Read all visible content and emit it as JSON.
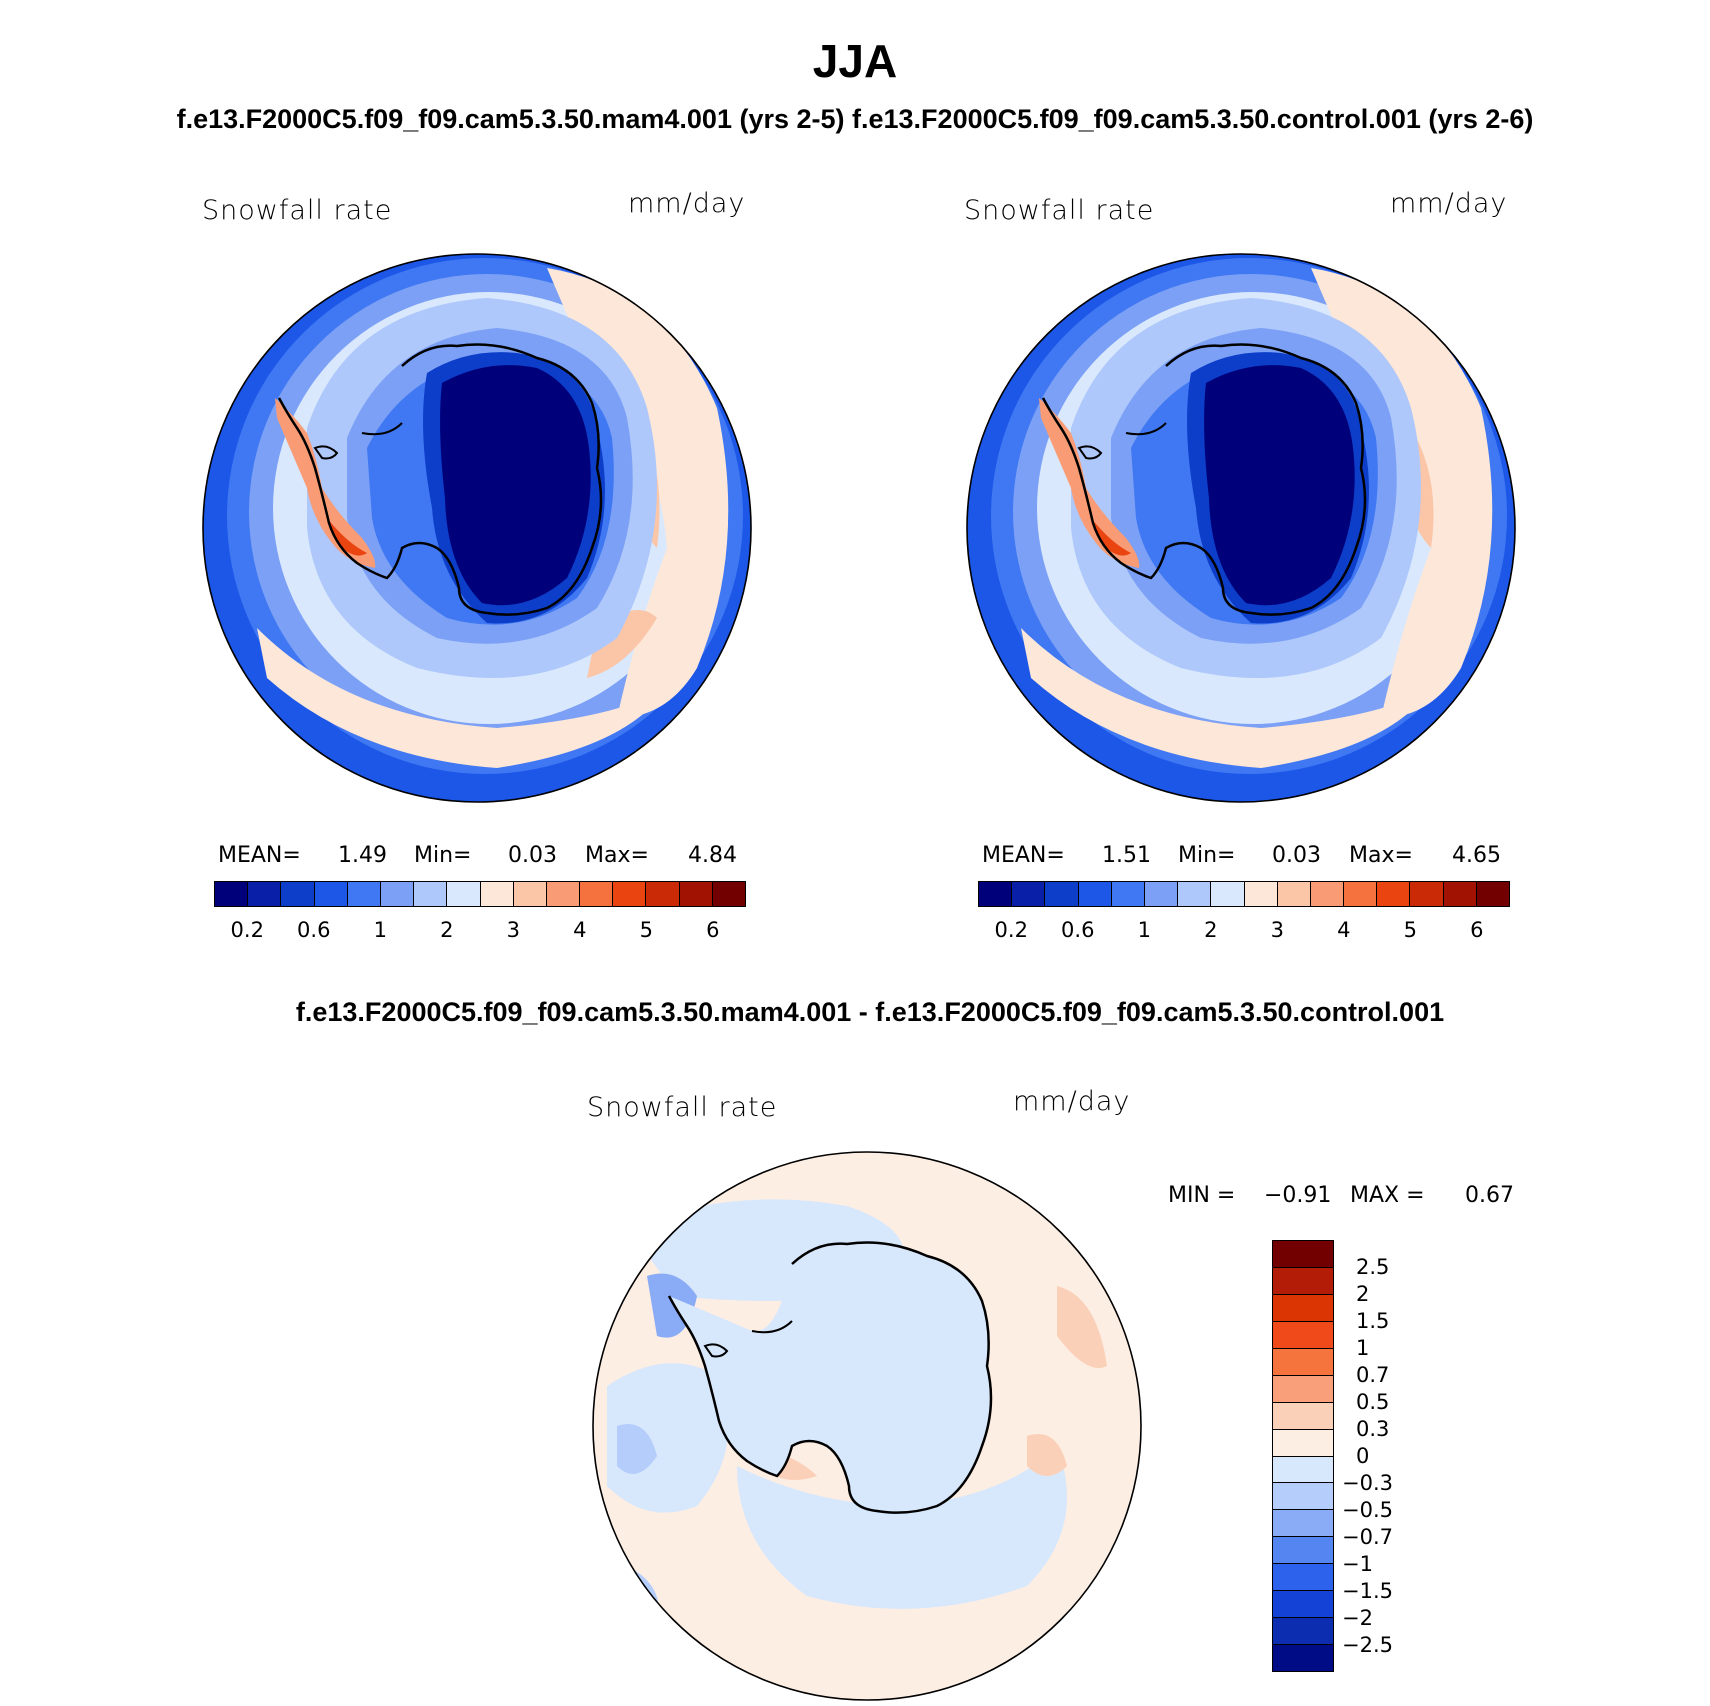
{
  "title": "JJA",
  "subtitle_top": "f.e13.F2000C5.f09_f09.cam5.3.50.mam4.001 (yrs 2-5) f.e13.F2000C5.f09_f09.cam5.3.50.control.001 (yrs 2-6)",
  "subtitle_diff": "f.e13.F2000C5.f09_f09.cam5.3.50.mam4.001 - f.e13.F2000C5.f09_f09.cam5.3.50.control.001",
  "panels": [
    {
      "variable": "Snowfall rate",
      "units": "mm/day",
      "stats": {
        "mean_label": "MEAN=",
        "mean": "1.49",
        "min_label": "Min=",
        "min": "0.03",
        "max_label": "Max=",
        "max": "4.84"
      }
    },
    {
      "variable": "Snowfall rate",
      "units": "mm/day",
      "stats": {
        "mean_label": "MEAN=",
        "mean": "1.51",
        "min_label": "Min=",
        "min": "0.03",
        "max_label": "Max=",
        "max": "4.65"
      }
    }
  ],
  "diff_panel": {
    "variable": "Snowfall rate",
    "units": "mm/day",
    "min_label": "MIN =",
    "min": "−0.91",
    "max_label": "MAX =",
    "max": "0.67"
  },
  "colorbar_top": {
    "colors": [
      "#00007a",
      "#0a1fa8",
      "#0d3ec9",
      "#1c57e8",
      "#3f78f2",
      "#7ba0f5",
      "#aec8fb",
      "#d9e8fc",
      "#fde7d8",
      "#fbc6a8",
      "#f99c75",
      "#f5723f",
      "#ea4411",
      "#cb2a06",
      "#a21203",
      "#730000"
    ],
    "labels": [
      "0.2",
      "0.6",
      "1",
      "2",
      "3",
      "4",
      "5",
      "6"
    ]
  },
  "colorbar_diff": {
    "colors": [
      "#730000",
      "#b31c06",
      "#dc3504",
      "#f04a1a",
      "#f5743e",
      "#f9a07a",
      "#fbd0b8",
      "#fdeee4",
      "#d7e7fc",
      "#b5cdfb",
      "#8aacf6",
      "#5585f0",
      "#2d62ec",
      "#1441d6",
      "#0c2db0",
      "#000c85"
    ],
    "labels": [
      "2.5",
      "2",
      "1.5",
      "1",
      "0.7",
      "0.5",
      "0.3",
      "0",
      "−0.3",
      "−0.5",
      "−0.7",
      "−1",
      "−1.5",
      "−2",
      "−2.5"
    ]
  }
}
